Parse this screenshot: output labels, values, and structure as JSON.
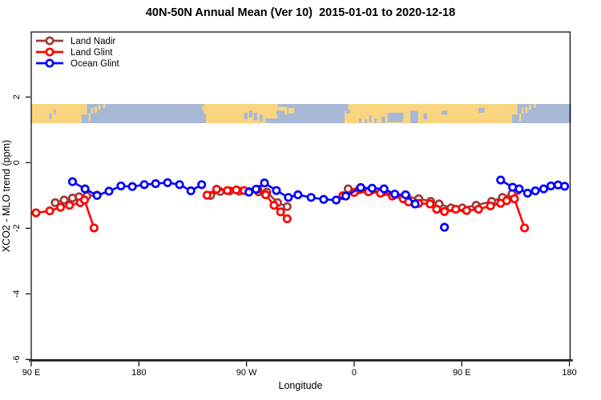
{
  "title": "40N-50N Annual Mean (Ver 10)  2015-01-01 to 2020-12-18",
  "legend": {
    "items": [
      {
        "label": "Land Nadir",
        "color": "#A03A3A"
      },
      {
        "label": "Land Glint",
        "color": "#FF0000"
      },
      {
        "label": "Ocean Glint",
        "color": "#0000FF"
      }
    ]
  },
  "chart_data": {
    "type": "line",
    "title": "40N-50N Annual Mean (Ver 10)  2015-01-01 to 2020-12-18",
    "xlabel": "Longitude",
    "ylabel": "XCO2 - MLO trend (ppm)",
    "x_axis": {
      "ticks": [
        90,
        180,
        270,
        360,
        450,
        540
      ],
      "tick_labels": [
        "90 E",
        "180",
        "90 W",
        "0",
        "90 E",
        "180"
      ],
      "range": [
        90,
        541.6
      ],
      "note": "longitude axis wraps: 90E..180..90W..0..90E..180"
    },
    "y_axis": {
      "ticks": [
        2,
        0,
        -2,
        -4,
        -6
      ],
      "tick_labels": [
        "2",
        "0",
        "-2",
        "-4",
        "-6"
      ],
      "range": [
        -6.07,
        3.98
      ]
    },
    "grid": false,
    "legend_position": "top-left-inside",
    "series": [
      {
        "name": "Land Nadir",
        "color": "#A03A3A",
        "marker": "open-circle",
        "segments": [
          [
            [
              110,
              -1.22
            ],
            [
              117.5,
              -1.14
            ],
            [
              124.5,
              -1.08
            ],
            [
              130,
              -1.04
            ],
            [
              136.5,
              -1.02
            ],
            [
              145,
              -0.99
            ]
          ],
          [
            [
              240,
              -1.0
            ],
            [
              248,
              -0.88
            ],
            [
              256,
              -0.86
            ],
            [
              264,
              -0.87
            ],
            [
              272,
              -0.88
            ],
            [
              280,
              -0.89
            ],
            [
              287,
              -0.9
            ],
            [
              296,
              -1.22
            ],
            [
              304,
              -1.34
            ]
          ],
          [
            [
              355,
              -0.8
            ],
            [
              364,
              -0.83
            ],
            [
              374,
              -0.85
            ],
            [
              384,
              -0.9
            ],
            [
              394,
              -0.98
            ],
            [
              404,
              -1.04
            ],
            [
              414,
              -1.1
            ],
            [
              424,
              -1.18
            ],
            [
              431,
              -1.26
            ],
            [
              441,
              -1.38
            ],
            [
              450.5,
              -1.38
            ],
            [
              462,
              -1.3
            ],
            [
              475,
              -1.18
            ],
            [
              484,
              -1.06
            ],
            [
              492,
              -0.95
            ],
            [
              496.5,
              -0.85
            ]
          ]
        ]
      },
      {
        "name": "Land Glint",
        "color": "#FF0000",
        "marker": "open-circle",
        "segments": [
          [
            [
              94,
              -1.53
            ],
            [
              105.5,
              -1.47
            ],
            [
              114.5,
              -1.36
            ],
            [
              122,
              -1.3
            ],
            [
              131,
              -1.22
            ],
            [
              134.5,
              -1.14
            ],
            [
              142.5,
              -1.99
            ]
          ],
          [
            [
              237,
              -0.99
            ],
            [
              245,
              -0.81
            ],
            [
              254,
              -0.85
            ],
            [
              261.5,
              -0.83
            ],
            [
              268,
              -0.85
            ],
            [
              279.5,
              -0.81
            ],
            [
              286,
              -0.98
            ],
            [
              293,
              -1.3
            ],
            [
              298.5,
              -1.5
            ],
            [
              304,
              -1.71
            ]
          ],
          [
            [
              350.5,
              -1.01
            ],
            [
              360,
              -0.91
            ],
            [
              372,
              -0.89
            ],
            [
              382,
              -0.93
            ],
            [
              392,
              -1.02
            ],
            [
              401,
              -1.1
            ],
            [
              405.5,
              -1.2
            ],
            [
              414,
              -1.24
            ],
            [
              423.5,
              -1.26
            ],
            [
              429,
              -1.42
            ],
            [
              435.5,
              -1.49
            ],
            [
              445,
              -1.42
            ],
            [
              454,
              -1.46
            ],
            [
              464,
              -1.42
            ],
            [
              474,
              -1.32
            ],
            [
              482.5,
              -1.24
            ],
            [
              487.5,
              -1.16
            ],
            [
              494,
              -1.1
            ],
            [
              502.5,
              -1.99
            ]
          ]
        ]
      },
      {
        "name": "Ocean Glint",
        "color": "#0000FF",
        "marker": "open-circle",
        "segments": [
          [
            [
              124.5,
              -0.58
            ],
            [
              135,
              -0.8
            ],
            [
              145,
              -1.0
            ],
            [
              155,
              -0.87
            ],
            [
              165,
              -0.71
            ],
            [
              174.5,
              -0.73
            ],
            [
              184.5,
              -0.67
            ],
            [
              194,
              -0.64
            ],
            [
              204,
              -0.61
            ],
            [
              214,
              -0.67
            ],
            [
              223.5,
              -0.86
            ],
            [
              232.5,
              -0.67
            ]
          ],
          [
            [
              272,
              -0.9
            ],
            [
              278,
              -0.81
            ],
            [
              285,
              -0.62
            ],
            [
              295,
              -0.85
            ],
            [
              305,
              -1.06
            ],
            [
              313,
              -0.98
            ],
            [
              324,
              -1.06
            ],
            [
              334.5,
              -1.12
            ],
            [
              345,
              -1.14
            ],
            [
              353,
              -1.02
            ],
            [
              365.5,
              -0.76
            ],
            [
              375,
              -0.78
            ],
            [
              385,
              -0.8
            ],
            [
              394,
              -0.96
            ],
            [
              403,
              -0.98
            ],
            [
              411,
              -1.26
            ]
          ],
          [
            [
              435.5,
              -1.97
            ]
          ],
          [
            [
              482.5,
              -0.53
            ],
            [
              492.5,
              -0.75
            ],
            [
              498,
              -0.8
            ],
            [
              505,
              -0.93
            ],
            [
              511.5,
              -0.86
            ],
            [
              518.5,
              -0.8
            ],
            [
              524.5,
              -0.71
            ],
            [
              530.5,
              -0.68
            ],
            [
              536,
              -0.72
            ]
          ]
        ]
      }
    ],
    "map_strip": {
      "ocean_color": "#A7B9D7",
      "land_color": "#FBD480",
      "lat_band": "40N-50N",
      "land_shapes": [
        {
          "l0": 90,
          "l1": 132,
          "f0": 0,
          "f1": 1
        },
        {
          "l0": 132,
          "l1": 136.5,
          "f0": 0,
          "f1": 0.55
        },
        {
          "l0": 138,
          "l1": 139.5,
          "f0": 0.5,
          "f1": 0.9
        },
        {
          "l0": 140,
          "l1": 141.5,
          "f0": 0.2,
          "f1": 0.5
        },
        {
          "l0": 143,
          "l1": 145,
          "f0": 0.15,
          "f1": 0.45
        },
        {
          "l0": 146,
          "l1": 148,
          "f0": 0.05,
          "f1": 0.3
        },
        {
          "l0": 150,
          "l1": 152,
          "f0": 0,
          "f1": 0.2
        },
        {
          "l0": 233,
          "l1": 235.5,
          "f0": 0.1,
          "f1": 0.35
        },
        {
          "l0": 234.5,
          "l1": 236,
          "f0": 0,
          "f1": 0.5
        },
        {
          "l0": 236,
          "l1": 286,
          "f0": 0,
          "f1": 1
        },
        {
          "l0": 286,
          "l1": 296,
          "f0": 0,
          "f1": 0.75
        },
        {
          "l0": 296,
          "l1": 304,
          "f0": 0.15,
          "f1": 0.55
        },
        {
          "l0": 305,
          "l1": 310,
          "f0": 0.2,
          "f1": 0.5
        },
        {
          "l0": 352,
          "l1": 363,
          "f0": 0.35,
          "f1": 1
        },
        {
          "l0": 355,
          "l1": 364,
          "f0": 0,
          "f1": 0.5
        },
        {
          "l0": 363,
          "l1": 492,
          "f0": 0,
          "f1": 1
        },
        {
          "l0": 492,
          "l1": 496.5,
          "f0": 0,
          "f1": 0.55
        },
        {
          "l0": 498,
          "l1": 499.5,
          "f0": 0.5,
          "f1": 0.9
        },
        {
          "l0": 500,
          "l1": 501.5,
          "f0": 0.2,
          "f1": 0.5
        },
        {
          "l0": 503,
          "l1": 505,
          "f0": 0.15,
          "f1": 0.45
        },
        {
          "l0": 506,
          "l1": 508,
          "f0": 0.05,
          "f1": 0.3
        },
        {
          "l0": 510,
          "l1": 512,
          "f0": 0,
          "f1": 0.2
        }
      ],
      "water_shapes": [
        {
          "l0": 105,
          "l1": 107,
          "f0": 0.5,
          "f1": 0.8
        },
        {
          "l0": 109,
          "l1": 110.5,
          "f0": 0.3,
          "f1": 0.55
        },
        {
          "l0": 268,
          "l1": 271,
          "f0": 0.45,
          "f1": 0.8
        },
        {
          "l0": 272,
          "l1": 275,
          "f0": 0.35,
          "f1": 0.7
        },
        {
          "l0": 276,
          "l1": 279,
          "f0": 0.45,
          "f1": 0.85
        },
        {
          "l0": 281,
          "l1": 283.5,
          "f0": 0.55,
          "f1": 0.9
        },
        {
          "l0": 295,
          "l1": 302,
          "f0": 0.35,
          "f1": 0.55
        },
        {
          "l0": 353,
          "l1": 356.5,
          "f0": 0.3,
          "f1": 0.5
        },
        {
          "l0": 364,
          "l1": 366,
          "f0": 0.75,
          "f1": 1
        },
        {
          "l0": 369,
          "l1": 371,
          "f0": 0.8,
          "f1": 1
        },
        {
          "l0": 372.5,
          "l1": 374.5,
          "f0": 0.6,
          "f1": 0.95
        },
        {
          "l0": 377,
          "l1": 379,
          "f0": 0.75,
          "f1": 1
        },
        {
          "l0": 383,
          "l1": 386,
          "f0": 0.65,
          "f1": 1
        },
        {
          "l0": 388,
          "l1": 401,
          "f0": 0.45,
          "f1": 0.95
        },
        {
          "l0": 407,
          "l1": 413.5,
          "f0": 0.35,
          "f1": 1
        },
        {
          "l0": 418,
          "l1": 421,
          "f0": 0.5,
          "f1": 0.8
        },
        {
          "l0": 433,
          "l1": 438,
          "f0": 0.35,
          "f1": 0.55
        },
        {
          "l0": 464,
          "l1": 469,
          "f0": 0.2,
          "f1": 0.45
        }
      ]
    }
  }
}
